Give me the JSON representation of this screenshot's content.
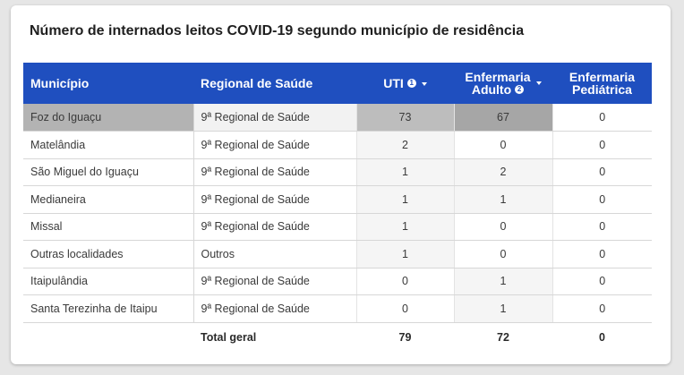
{
  "title": "Número de internados leitos COVID-19 segundo município de residência",
  "columns": {
    "municipio": "Município",
    "regional": "Regional de Saúde",
    "uti": "UTI",
    "uti_badge": "1",
    "enf_adulto_l1": "Enfermaria",
    "enf_adulto_l2": "Adulto",
    "enf_adulto_badge": "2",
    "enf_ped_l1": "Enfermaria",
    "enf_ped_l2": "Pediátrica"
  },
  "colors": {
    "header_bg": "#1f4fbf",
    "highlight_strong": "#a6a6a6",
    "highlight_medium": "#bdbdbd",
    "highlight_light": "#f2f2f2"
  },
  "rows": [
    {
      "municipio": "Foz do Iguaçu",
      "regional": "9ª Regional de Saúde",
      "uti": "73",
      "enf_adulto": "67",
      "enf_ped": "0"
    },
    {
      "municipio": "Matelândia",
      "regional": "9ª Regional de Saúde",
      "uti": "2",
      "enf_adulto": "0",
      "enf_ped": "0"
    },
    {
      "municipio": "São Miguel do Iguaçu",
      "regional": "9ª Regional de Saúde",
      "uti": "1",
      "enf_adulto": "2",
      "enf_ped": "0"
    },
    {
      "municipio": "Medianeira",
      "regional": "9ª Regional de Saúde",
      "uti": "1",
      "enf_adulto": "1",
      "enf_ped": "0"
    },
    {
      "municipio": "Missal",
      "regional": "9ª Regional de Saúde",
      "uti": "1",
      "enf_adulto": "0",
      "enf_ped": "0"
    },
    {
      "municipio": "Outras localidades",
      "regional": "Outros",
      "uti": "1",
      "enf_adulto": "0",
      "enf_ped": "0"
    },
    {
      "municipio": "Itaipulândia",
      "regional": "9ª Regional de Saúde",
      "uti": "0",
      "enf_adulto": "1",
      "enf_ped": "0"
    },
    {
      "municipio": "Santa Terezinha de Itaipu",
      "regional": "9ª Regional de Saúde",
      "uti": "0",
      "enf_adulto": "1",
      "enf_ped": "0"
    }
  ],
  "total": {
    "label": "Total geral",
    "uti": "79",
    "enf_adulto": "72",
    "enf_ped": "0"
  }
}
